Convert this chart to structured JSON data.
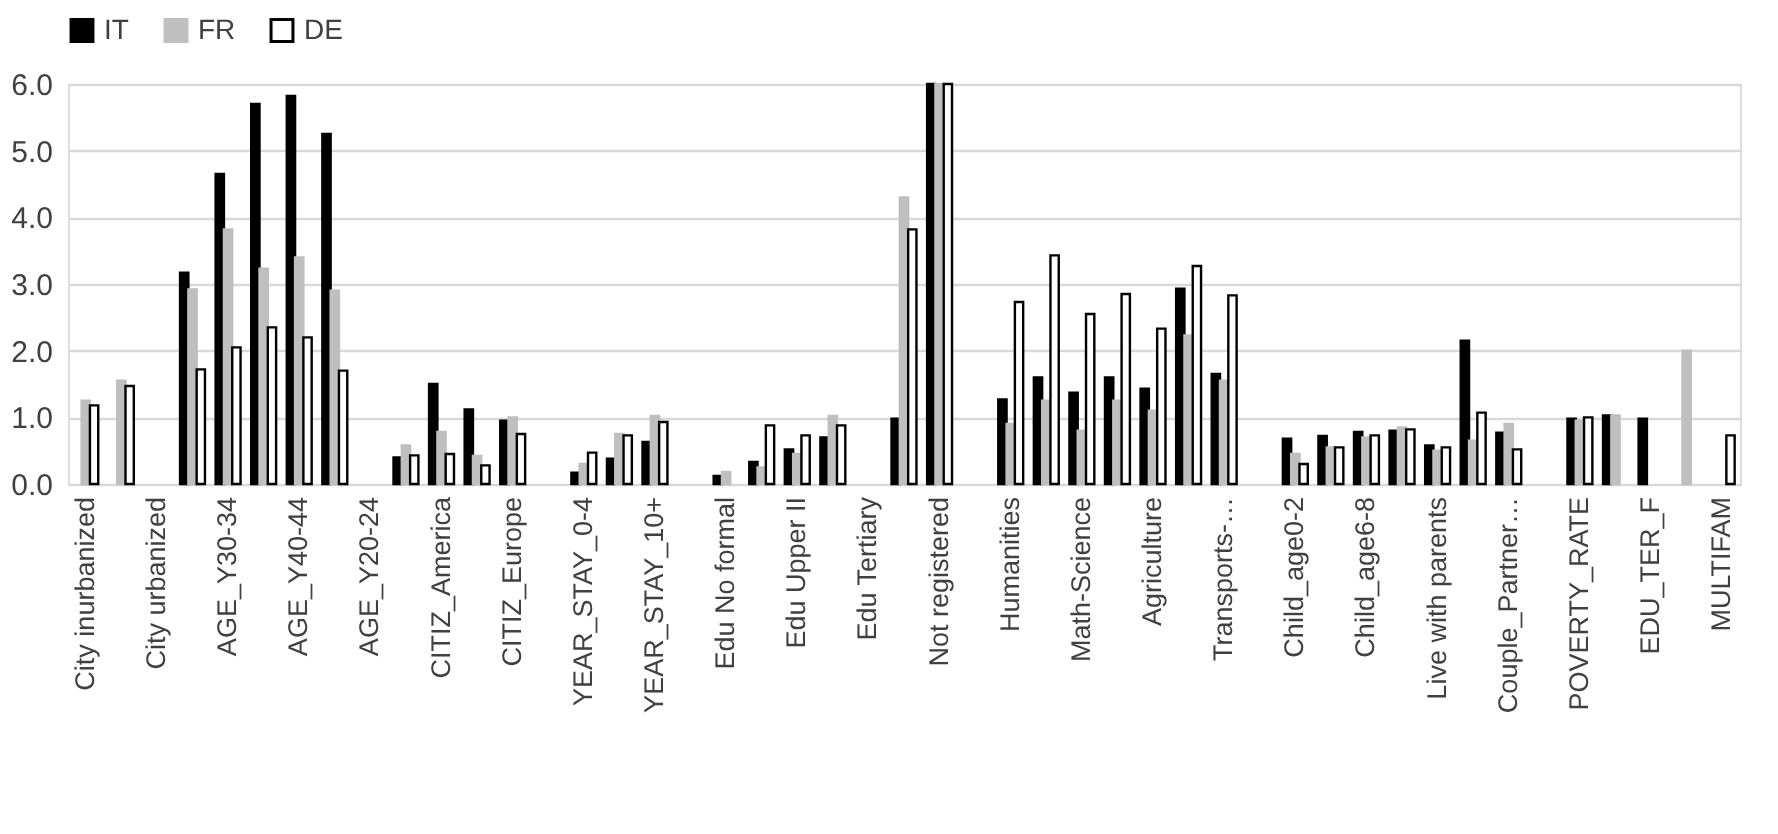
{
  "chart_data": {
    "type": "bar",
    "categories": [
      "City inurbanized",
      null,
      "City  urbanized",
      null,
      "AGE_Y30-34",
      null,
      "AGE_Y40-44",
      null,
      "AGE_Y20-24",
      null,
      "CITIZ_America",
      null,
      "CITIZ_Europe",
      null,
      "YEAR_STAY_0-4",
      null,
      "YEAR_STAY_10+",
      null,
      "Edu No formal",
      null,
      "Edu Upper II",
      null,
      "Edu Tertiary",
      null,
      "Not registered",
      null,
      "Humanities",
      null,
      "Math-Science",
      null,
      "Agriculture",
      null,
      "Transports-…",
      null,
      "Child_age0-2",
      null,
      "Child_age6-8",
      null,
      "Live with parents",
      null,
      "Couple_Partner…",
      null,
      "POVERTY_RATE",
      null,
      "EDU_TER_F",
      null,
      "MULTIFAM"
    ],
    "series": [
      {
        "name": "IT",
        "color": "#000000",
        "values": [
          null,
          null,
          null,
          3.17,
          4.65,
          5.7,
          5.82,
          5.25,
          null,
          0.4,
          1.5,
          1.12,
          0.95,
          null,
          0.17,
          0.38,
          0.63,
          null,
          0.12,
          0.33,
          0.52,
          0.7,
          null,
          0.98,
          6.0,
          null,
          1.27,
          1.6,
          1.37,
          1.6,
          1.43,
          2.93,
          1.65,
          null,
          0.68,
          0.72,
          0.78,
          0.8,
          0.58,
          2.15,
          0.77,
          null,
          0.98,
          1.03,
          0.98,
          null,
          null
        ]
      },
      {
        "name": "FR",
        "color": "#bfbfbf",
        "values": [
          1.25,
          1.55,
          null,
          2.92,
          3.82,
          3.23,
          3.4,
          2.9,
          null,
          0.58,
          0.78,
          0.42,
          1.0,
          null,
          0.3,
          0.75,
          1.02,
          null,
          0.18,
          0.25,
          0.45,
          1.02,
          null,
          4.3,
          6.0,
          null,
          0.9,
          1.25,
          0.8,
          1.25,
          1.1,
          2.23,
          1.55,
          null,
          0.45,
          0.55,
          0.7,
          0.85,
          0.5,
          0.65,
          0.9,
          null,
          0.95,
          1.03,
          null,
          2.0,
          null
        ]
      },
      {
        "name": "DE",
        "color": "#ffffff",
        "values": [
          1.18,
          1.47,
          null,
          1.72,
          2.05,
          2.35,
          2.2,
          1.7,
          null,
          0.43,
          0.45,
          0.28,
          0.75,
          null,
          0.47,
          0.73,
          0.93,
          null,
          null,
          0.88,
          0.73,
          0.88,
          null,
          3.82,
          6.0,
          null,
          2.73,
          3.43,
          2.55,
          2.85,
          2.33,
          3.27,
          2.83,
          null,
          0.3,
          0.55,
          0.73,
          0.82,
          0.55,
          1.07,
          0.52,
          null,
          1.0,
          null,
          null,
          null,
          0.73
        ]
      }
    ],
    "ylim": [
      0,
      6
    ],
    "yticks": [
      {
        "value": 0,
        "label": "0.0"
      },
      {
        "value": 1,
        "label": "1.0"
      },
      {
        "value": 2,
        "label": "2.0"
      },
      {
        "value": 3,
        "label": "3.0"
      },
      {
        "value": 4,
        "label": "4.0"
      },
      {
        "value": 5,
        "label": "5.0"
      },
      {
        "value": 6,
        "label": "6.0"
      }
    ],
    "grid": "y",
    "legend": "top"
  }
}
